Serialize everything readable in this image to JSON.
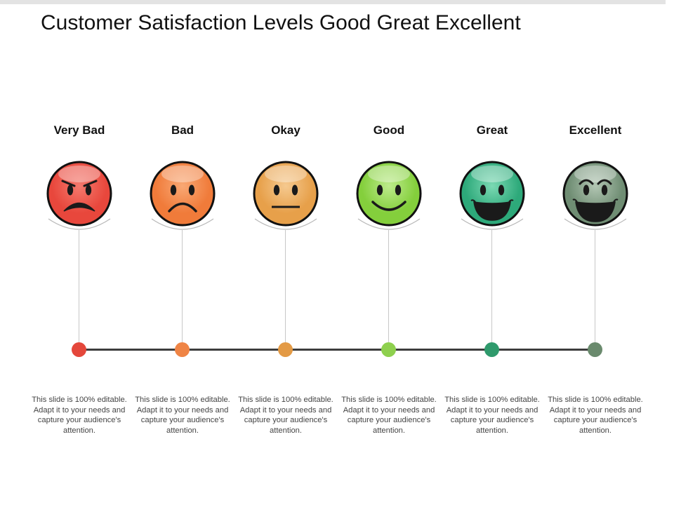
{
  "title": "Customer Satisfaction Levels Good Great Excellent",
  "levels": [
    {
      "label": "Very Bad",
      "face": "very-bad-face-icon",
      "color": "#e8473c",
      "rim": "#f47a6e",
      "node": "#e4473b",
      "description": "This slide is 100% editable. Adapt it to your needs and capture your audience's attention."
    },
    {
      "label": "Bad",
      "face": "bad-face-icon",
      "color": "#f07b3a",
      "rim": "#f9a874",
      "node": "#ef8445",
      "description": "This slide is 100% editable. Adapt it to your needs and capture your audience's attention."
    },
    {
      "label": "Okay",
      "face": "okay-face-icon",
      "color": "#e7a04a",
      "rim": "#f5c98f",
      "node": "#e39a45",
      "description": "This slide is 100% editable. Adapt it to your needs and capture your audience's attention."
    },
    {
      "label": "Good",
      "face": "good-face-icon",
      "color": "#84cf3c",
      "rim": "#bdeb8c",
      "node": "#8ed04e",
      "description": "This slide is 100% editable. Adapt it to your needs and capture your audience's attention."
    },
    {
      "label": "Great",
      "face": "great-face-icon",
      "color": "#2da97a",
      "rim": "#7bd9b3",
      "node": "#2f9a6c",
      "description": "This slide is 100% editable. Adapt it to your needs and capture your audience's attention."
    },
    {
      "label": "Excellent",
      "face": "excellent-face-icon",
      "color": "#6f8d73",
      "rim": "#b2c6b3",
      "node": "#6a8a6d",
      "description": "This slide is 100% editable. Adapt it to your needs and capture your audience's attention."
    }
  ]
}
